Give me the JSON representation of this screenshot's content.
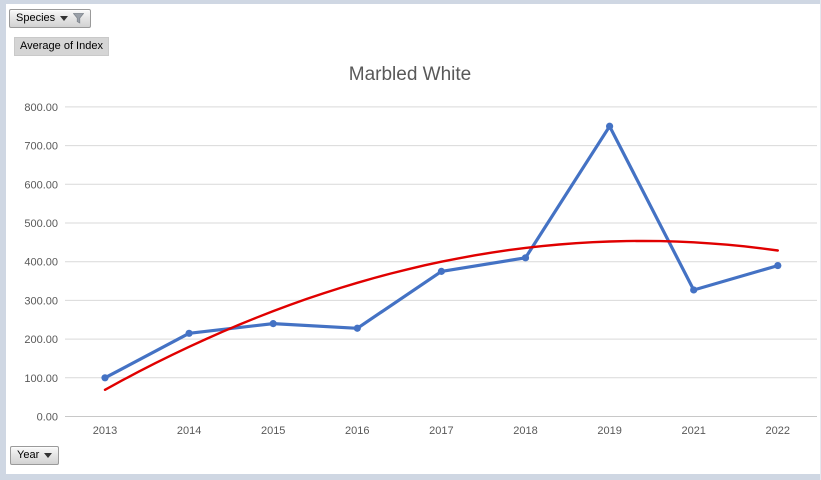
{
  "window": {
    "frame_color": "#cfd7e3"
  },
  "pivot_controls": {
    "species_button": {
      "label": "Species",
      "has_filter_applied": true
    },
    "value_field_label": "Average of Index",
    "year_button": {
      "label": "Year"
    }
  },
  "chart_data": {
    "type": "line",
    "title": "Marbled White",
    "categories": [
      "2013",
      "2014",
      "2015",
      "2016",
      "2017",
      "2018",
      "2019",
      "2021",
      "2022"
    ],
    "series": [
      {
        "name": "Average of Index",
        "color": "#4472C4",
        "markers": true,
        "smooth": false,
        "values": [
          100,
          215,
          240,
          228,
          375,
          410,
          750,
          327,
          390
        ]
      },
      {
        "name": "Polynomial trendline",
        "color": "#E00000",
        "markers": false,
        "smooth": true,
        "values": [
          69,
          180,
          273,
          346,
          400,
          436,
          452,
          450,
          429
        ]
      }
    ],
    "ylim": [
      0,
      800
    ],
    "ytick_step": 100,
    "ytick_decimals": 2,
    "grid": "horizontal",
    "legend": "none",
    "colors": {
      "gridline": "#d9d9d9",
      "axis_line": "#c8c8c8",
      "tick_label": "#595959",
      "title": "#595959"
    }
  }
}
